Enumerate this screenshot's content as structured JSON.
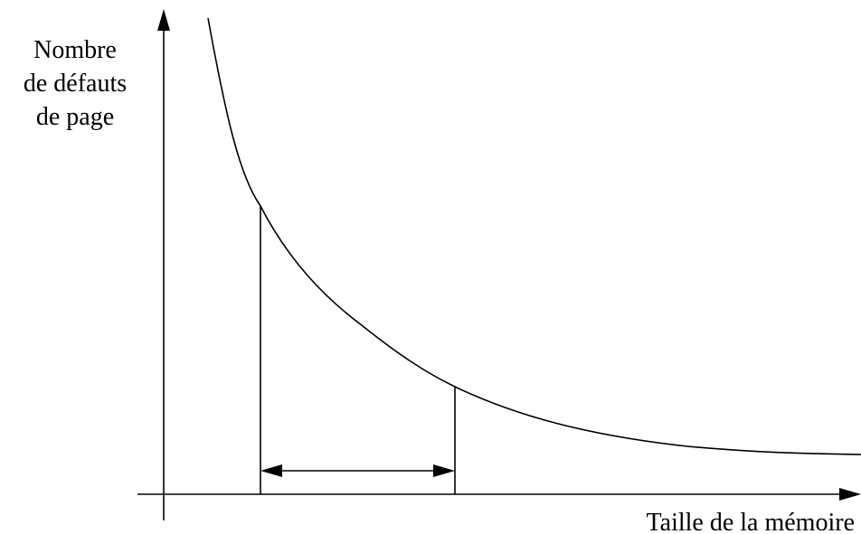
{
  "y_axis_label": [
    "Nombre",
    "de défauts",
    "de page"
  ],
  "x_axis_label": "Taille de la mémoire"
}
